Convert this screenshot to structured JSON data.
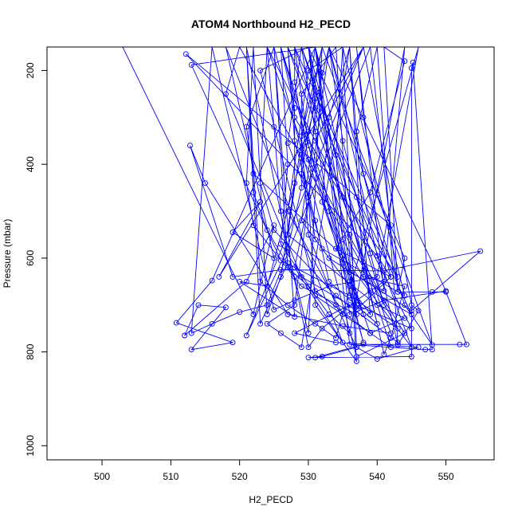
{
  "chart_data": {
    "type": "scatter",
    "title": "ATOM4 Northbound H2_PECD",
    "xlabel": "H2_PECD",
    "ylabel": "Pressure (mbar)",
    "xlim": [
      492,
      557
    ],
    "ylim": [
      1030,
      150
    ],
    "y_reversed": true,
    "x_ticks": [
      500,
      510,
      520,
      530,
      540,
      550
    ],
    "x_tick_labels": [
      "500",
      "510",
      "520",
      "530",
      "540",
      "550"
    ],
    "y_ticks": [
      200,
      400,
      600,
      800,
      1000
    ],
    "y_tick_labels": [
      "200",
      "400",
      "600",
      "800",
      "1000"
    ],
    "grid": false,
    "legend": "none",
    "colors": {
      "series": "#0000ff",
      "axes": "#000000"
    },
    "series": [
      {
        "style": "line-with-open-circles",
        "points": [
          [
            503,
            150
          ],
          [
            522,
            720
          ],
          [
            525,
            530
          ],
          [
            521,
            650
          ],
          [
            512,
            765
          ],
          [
            514,
            700
          ],
          [
            518,
            705
          ],
          [
            513,
            795
          ],
          [
            519,
            780
          ],
          [
            510.8,
            738
          ],
          [
            516,
            648
          ],
          [
            531,
            150
          ],
          [
            537,
            710
          ],
          [
            542,
            640
          ],
          [
            540,
            595
          ],
          [
            512.2,
            165
          ],
          [
            542,
            530
          ],
          [
            530,
            150
          ],
          [
            523,
            200
          ],
          [
            531,
            670
          ],
          [
            539,
            760
          ],
          [
            544,
            728
          ],
          [
            540,
            700
          ],
          [
            527,
            550
          ],
          [
            531,
            150
          ],
          [
            513,
            188
          ],
          [
            526,
            605
          ],
          [
            536,
            680
          ],
          [
            543,
            750
          ],
          [
            520,
            150
          ],
          [
            518,
            250
          ],
          [
            529,
            640
          ],
          [
            536,
            700
          ],
          [
            528,
            760
          ],
          [
            534,
            780
          ],
          [
            546,
            790
          ],
          [
            540,
            815
          ],
          [
            537,
            790
          ],
          [
            532,
            810
          ],
          [
            530,
            812
          ],
          [
            545,
            810
          ],
          [
            545,
            195
          ],
          [
            545.2,
            183
          ],
          [
            548,
            795
          ],
          [
            547,
            795
          ],
          [
            536,
            784
          ],
          [
            531,
            150
          ],
          [
            532,
            205
          ],
          [
            529,
            520
          ],
          [
            533,
            600
          ],
          [
            545,
            712
          ],
          [
            555,
            585
          ],
          [
            541,
            627
          ],
          [
            526,
            625
          ],
          [
            519,
            640
          ],
          [
            512.8,
            360
          ],
          [
            515,
            440
          ],
          [
            527,
            720
          ],
          [
            535,
            745
          ],
          [
            542,
            760
          ],
          [
            527,
            150
          ],
          [
            528,
            300
          ],
          [
            535,
            470
          ],
          [
            543,
            640
          ],
          [
            528,
            150
          ],
          [
            528,
            225
          ],
          [
            530,
            390
          ],
          [
            541,
            690
          ],
          [
            550,
            670
          ],
          [
            533,
            150
          ],
          [
            530,
            330
          ],
          [
            524,
            660
          ],
          [
            520,
            650
          ],
          [
            528,
            725
          ],
          [
            525,
            150
          ],
          [
            521,
            320
          ],
          [
            522,
            420
          ],
          [
            535,
            595
          ],
          [
            545,
            790
          ],
          [
            529,
            150
          ],
          [
            527,
            355
          ],
          [
            530,
            470
          ],
          [
            531,
            700
          ],
          [
            537,
            820
          ],
          [
            534,
            150
          ],
          [
            529,
            250
          ],
          [
            529,
            450
          ],
          [
            527,
            580
          ],
          [
            521,
            765
          ],
          [
            538,
            150
          ],
          [
            531,
            350
          ],
          [
            536,
            550
          ],
          [
            537,
            700
          ],
          [
            545,
            750
          ],
          [
            524,
            150
          ],
          [
            523,
            440
          ],
          [
            525,
            540
          ],
          [
            534,
            680
          ],
          [
            543,
            780
          ],
          [
            540,
            150
          ],
          [
            537,
            330
          ],
          [
            538,
            420
          ],
          [
            544,
            700
          ],
          [
            548,
            785
          ],
          [
            532,
            150
          ],
          [
            529,
            380
          ],
          [
            531,
            560
          ],
          [
            536,
            660
          ],
          [
            539,
            720
          ],
          [
            536,
            150
          ],
          [
            533,
            300
          ],
          [
            532,
            480
          ],
          [
            535,
            610
          ],
          [
            538,
            780
          ],
          [
            526,
            150
          ],
          [
            528,
            280
          ],
          [
            528,
            440
          ],
          [
            526,
            640
          ],
          [
            524,
            720
          ],
          [
            522,
            150
          ],
          [
            521,
            440
          ],
          [
            522,
            530
          ],
          [
            529,
            660
          ],
          [
            537,
            720
          ],
          [
            530,
            150
          ],
          [
            531,
            260
          ],
          [
            529,
            420
          ],
          [
            532,
            580
          ],
          [
            544,
            680
          ],
          [
            535,
            150
          ],
          [
            530,
            200
          ],
          [
            527,
            500
          ],
          [
            535,
            720
          ],
          [
            542,
            790
          ],
          [
            528,
            150
          ],
          [
            530,
            360
          ],
          [
            536,
            630
          ],
          [
            541,
            670
          ],
          [
            537,
            150
          ],
          [
            538,
            300
          ],
          [
            540,
            465
          ],
          [
            544,
            600
          ],
          [
            543,
            672
          ],
          [
            541,
            150
          ],
          [
            544,
            180
          ],
          [
            539,
            460
          ],
          [
            534,
            580
          ],
          [
            542,
            640
          ],
          [
            533,
            150
          ],
          [
            535,
            350
          ],
          [
            537,
            470
          ],
          [
            539,
            590
          ],
          [
            541,
            700
          ],
          [
            529,
            150
          ],
          [
            531,
            330
          ],
          [
            533,
            500
          ],
          [
            536,
            650
          ],
          [
            538,
            720
          ],
          [
            526,
            150
          ],
          [
            527,
            400
          ],
          [
            526,
            570
          ],
          [
            531,
            680
          ],
          [
            539,
            760
          ],
          [
            524,
            150
          ],
          [
            525,
            320
          ],
          [
            526,
            500
          ],
          [
            527,
            610
          ],
          [
            523,
            740
          ],
          [
            521,
            150
          ],
          [
            522,
            460
          ],
          [
            524,
            540
          ],
          [
            528,
            640
          ],
          [
            530,
            760
          ],
          [
            532,
            150
          ],
          [
            529,
            340
          ],
          [
            530,
            550
          ],
          [
            534,
            700
          ],
          [
            537,
            790
          ],
          [
            535,
            150
          ],
          [
            534,
            380
          ],
          [
            535,
            560
          ],
          [
            539,
            670
          ],
          [
            545,
            720
          ],
          [
            527,
            150
          ],
          [
            528,
            350
          ],
          [
            531,
            520
          ],
          [
            533,
            650
          ],
          [
            540,
            740
          ],
          [
            530,
            150
          ],
          [
            531,
            280
          ],
          [
            530,
            480
          ],
          [
            528,
            620
          ],
          [
            535,
            780
          ],
          [
            518,
            150
          ],
          [
            525,
            600
          ],
          [
            519,
            545
          ],
          [
            523,
            480
          ],
          [
            517,
            640
          ],
          [
            538,
            150
          ],
          [
            545,
            700
          ],
          [
            546,
            712
          ],
          [
            543,
            785
          ],
          [
            533,
            150
          ],
          [
            528,
            700
          ],
          [
            524,
            740
          ],
          [
            526,
            760
          ],
          [
            529,
            790
          ],
          [
            536,
            150
          ],
          [
            538,
            640
          ],
          [
            544,
            660
          ],
          [
            542,
            770
          ],
          [
            541,
            805
          ],
          [
            531,
            150
          ],
          [
            536,
            720
          ],
          [
            541,
            690
          ],
          [
            544,
            760
          ],
          [
            537,
            810
          ],
          [
            525,
            150
          ],
          [
            527,
            620
          ],
          [
            530,
            660
          ],
          [
            533,
            720
          ],
          [
            536,
            760
          ],
          [
            544,
            150
          ],
          [
            541,
            650
          ],
          [
            537,
            690
          ],
          [
            532,
            750
          ],
          [
            530,
            790
          ],
          [
            521,
            150
          ],
          [
            523,
            650
          ],
          [
            527,
            700
          ],
          [
            531,
            740
          ],
          [
            534,
            770
          ],
          [
            546,
            150
          ],
          [
            540,
            640
          ],
          [
            533,
            660
          ],
          [
            528,
            690
          ],
          [
            525,
            710
          ],
          [
            516,
            150
          ],
          [
            513,
            760
          ],
          [
            516,
            740
          ],
          [
            520,
            715
          ],
          [
            524,
            700
          ],
          [
            539,
            150
          ],
          [
            543,
            672
          ],
          [
            548,
            672
          ],
          [
            550,
            672
          ],
          [
            553,
            784
          ],
          [
            552,
            784
          ],
          [
            538,
            784
          ],
          [
            531,
            812
          ]
        ]
      }
    ]
  }
}
